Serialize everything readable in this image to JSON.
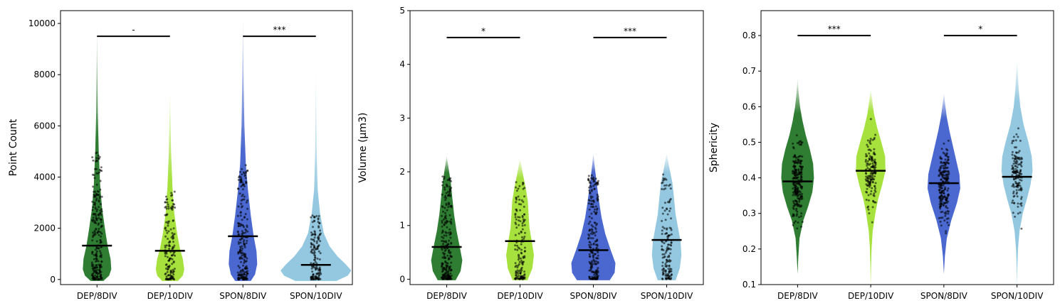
{
  "chart_data": [
    {
      "type": "violin",
      "ylabel": "Point Count",
      "categories": [
        "DEP/8DIV",
        "DEP/10DIV",
        "SPON/8DIV",
        "SPON/10DIV"
      ],
      "ylim": [
        -200,
        10500
      ],
      "yticks": [
        0,
        2000,
        4000,
        6000,
        8000,
        10000
      ],
      "yticklabels": [
        "0",
        "2000",
        "4000",
        "6000",
        "8000",
        "10000"
      ],
      "colors": [
        "#2e7d32",
        "#a6e13e",
        "#4a68cf",
        "#93c8e0"
      ],
      "medians": [
        1320,
        1120,
        1690,
        570
      ],
      "maxima": [
        10000,
        7400,
        10300,
        8300
      ],
      "significance": [
        {
          "from": 0,
          "to": 1,
          "y": 9500,
          "label": "-"
        },
        {
          "from": 2,
          "to": 3,
          "y": 9500,
          "label": "***"
        }
      ]
    },
    {
      "type": "violin",
      "ylabel": "Volume (µm3)",
      "categories": [
        "DEP/8DIV",
        "DEP/10DIV",
        "SPON/8DIV",
        "SPON/10DIV"
      ],
      "ylim": [
        -0.1,
        5
      ],
      "yticks": [
        0,
        1,
        2,
        3,
        4,
        5
      ],
      "yticklabels": [
        "0",
        "1",
        "2",
        "3",
        "4",
        "5"
      ],
      "colors": [
        "#2e7d32",
        "#a6e13e",
        "#4a68cf",
        "#93c8e0"
      ],
      "medians": [
        0.6,
        0.71,
        0.54,
        0.73
      ],
      "maxima": [
        2.3,
        2.25,
        2.35,
        2.35
      ],
      "significance": [
        {
          "from": 0,
          "to": 1,
          "y": 4.5,
          "label": "*"
        },
        {
          "from": 2,
          "to": 3,
          "y": 4.5,
          "label": "***"
        }
      ]
    },
    {
      "type": "violin",
      "ylabel": "Sphericity",
      "categories": [
        "DEP/8DIV",
        "DEP/10DIV",
        "SPON/8DIV",
        "SPON/10DIV"
      ],
      "ylim": [
        0.1,
        0.87
      ],
      "yticks": [
        0.1,
        0.2,
        0.3,
        0.4,
        0.5,
        0.6,
        0.7,
        0.8
      ],
      "yticklabels": [
        "0.1",
        "0.2",
        "0.3",
        "0.4",
        "0.5",
        "0.6",
        "0.7",
        "0.8"
      ],
      "colors": [
        "#2e7d32",
        "#a6e13e",
        "#4a68cf",
        "#93c8e0"
      ],
      "medians": [
        0.39,
        0.42,
        0.385,
        0.403
      ],
      "maxima": [
        0.68,
        0.65,
        0.64,
        0.73
      ],
      "significance": [
        {
          "from": 0,
          "to": 1,
          "y": 0.8,
          "label": "***"
        },
        {
          "from": 2,
          "to": 3,
          "y": 0.8,
          "label": "*"
        }
      ]
    }
  ]
}
